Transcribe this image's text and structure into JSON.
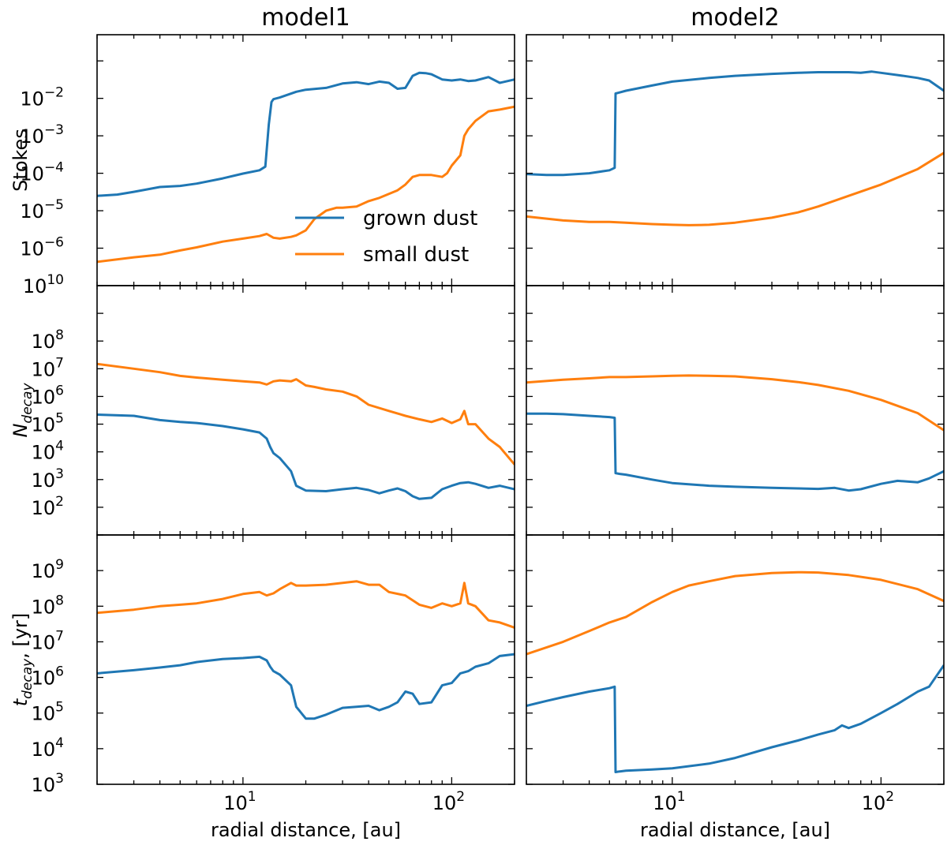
{
  "chart_data": [
    {
      "type": "line",
      "panel": "model1-stokes",
      "title": "model1",
      "ylabel": "Stokes",
      "xscale": "log",
      "yscale": "log",
      "xlim": [
        2,
        200
      ],
      "ylim": [
        1e-07,
        0.5
      ],
      "xticks": [
        {
          "v": 10,
          "base": "10",
          "exp": "1"
        },
        {
          "v": 100,
          "base": "10",
          "exp": "2"
        }
      ],
      "yticks": [
        {
          "v": 1e-06,
          "base": "10",
          "exp": "−6"
        },
        {
          "v": 1e-05,
          "base": "10",
          "exp": "−5"
        },
        {
          "v": 0.0001,
          "base": "10",
          "exp": "−4"
        },
        {
          "v": 0.001,
          "base": "10",
          "exp": "−3"
        },
        {
          "v": 0.01,
          "base": "10",
          "exp": "−2"
        }
      ],
      "legend": {
        "position": "center-right",
        "entries": [
          {
            "name": "grown dust",
            "color": "#1f77b4"
          },
          {
            "name": "small dust",
            "color": "#ff7f0e"
          }
        ]
      },
      "series": [
        {
          "name": "grown dust",
          "color": "#1f77b4",
          "x": [
            2,
            2.5,
            3,
            4,
            5,
            6,
            8,
            10,
            12,
            12.8,
            13.3,
            13.7,
            14,
            15,
            18,
            20,
            25,
            30,
            35,
            40,
            45,
            50,
            55,
            60,
            65,
            70,
            75,
            80,
            90,
            100,
            110,
            120,
            130,
            150,
            170,
            200
          ],
          "y": [
            2.5e-05,
            2.7e-05,
            3.2e-05,
            4.3e-05,
            4.6e-05,
            5.3e-05,
            7.3e-05,
            9.8e-05,
            0.00012,
            0.00015,
            0.002,
            0.008,
            0.0095,
            0.0105,
            0.015,
            0.017,
            0.019,
            0.025,
            0.027,
            0.024,
            0.028,
            0.026,
            0.018,
            0.019,
            0.04,
            0.048,
            0.047,
            0.044,
            0.032,
            0.03,
            0.032,
            0.029,
            0.03,
            0.037,
            0.026,
            0.032
          ]
        },
        {
          "name": "small dust",
          "color": "#ff7f0e",
          "x": [
            2,
            3,
            4,
            5,
            6,
            8,
            10,
            12,
            13,
            14,
            15,
            17,
            18,
            20,
            22,
            25,
            28,
            30,
            35,
            40,
            45,
            50,
            55,
            60,
            65,
            70,
            80,
            90,
            95,
            100,
            110,
            115,
            120,
            130,
            150,
            170,
            200
          ],
          "y": [
            4.3e-07,
            5.7e-07,
            6.7e-07,
            8.7e-07,
            1.05e-06,
            1.5e-06,
            1.8e-06,
            2.1e-06,
            2.4e-06,
            1.9e-06,
            1.8e-06,
            2e-06,
            2.2e-06,
            3e-06,
            6e-06,
            1e-05,
            1.2e-05,
            1.2e-05,
            1.3e-05,
            1.8e-05,
            2.2e-05,
            2.8e-05,
            3.5e-05,
            5e-05,
            8e-05,
            9e-05,
            9e-05,
            8e-05,
            0.0001,
            0.00016,
            0.0003,
            0.001,
            0.0015,
            0.0025,
            0.0045,
            0.005,
            0.006
          ]
        }
      ]
    },
    {
      "type": "line",
      "panel": "model2-stokes",
      "title": "model2",
      "xscale": "log",
      "yscale": "log",
      "xlim": [
        2,
        200
      ],
      "ylim": [
        1e-07,
        0.5
      ],
      "series": [
        {
          "name": "grown dust",
          "color": "#1f77b4",
          "x": [
            2,
            2.5,
            3,
            4,
            5,
            5.3,
            5.35,
            5.5,
            6,
            8,
            10,
            15,
            20,
            30,
            40,
            50,
            60,
            70,
            80,
            90,
            100,
            120,
            150,
            170,
            200
          ],
          "y": [
            9.5e-05,
            9e-05,
            9e-05,
            0.0001,
            0.00012,
            0.00014,
            0.0135,
            0.014,
            0.016,
            0.022,
            0.028,
            0.035,
            0.04,
            0.045,
            0.048,
            0.05,
            0.05,
            0.05,
            0.048,
            0.052,
            0.048,
            0.042,
            0.035,
            0.03,
            0.016
          ]
        },
        {
          "name": "small dust",
          "color": "#ff7f0e",
          "x": [
            2,
            3,
            4,
            5,
            6,
            8,
            10,
            12,
            15,
            20,
            30,
            40,
            50,
            70,
            100,
            150,
            200
          ],
          "y": [
            7e-06,
            5.5e-06,
            5e-06,
            5e-06,
            4.8e-06,
            4.4e-06,
            4.2e-06,
            4.1e-06,
            4.2e-06,
            4.8e-06,
            6.5e-06,
            9e-06,
            1.3e-05,
            2.5e-05,
            5e-05,
            0.00013,
            0.00035
          ]
        }
      ]
    },
    {
      "type": "line",
      "panel": "model1-ndecay",
      "ylabel": "N_decay",
      "xscale": "log",
      "yscale": "log",
      "xlim": [
        2,
        200
      ],
      "ylim": [
        10,
        10000000000.0
      ],
      "yticks": [
        {
          "v": 100,
          "base": "10",
          "exp": "2"
        },
        {
          "v": 1000,
          "base": "10",
          "exp": "3"
        },
        {
          "v": 10000.0,
          "base": "10",
          "exp": "4"
        },
        {
          "v": 100000.0,
          "base": "10",
          "exp": "5"
        },
        {
          "v": 1000000.0,
          "base": "10",
          "exp": "6"
        },
        {
          "v": 10000000.0,
          "base": "10",
          "exp": "7"
        },
        {
          "v": 100000000.0,
          "base": "10",
          "exp": "8"
        },
        {
          "v": 10000000000.0,
          "base": "10",
          "exp": "10"
        }
      ],
      "series": [
        {
          "name": "small dust",
          "color": "#ff7f0e",
          "x": [
            2,
            3,
            4,
            5,
            6,
            8,
            10,
            12,
            13,
            14,
            15,
            17,
            18,
            20,
            22,
            25,
            30,
            35,
            40,
            50,
            60,
            70,
            80,
            90,
            100,
            110,
            115,
            120,
            130,
            150,
            170,
            200
          ],
          "y": [
            15000000.0,
            10000000.0,
            7500000.0,
            5500000.0,
            4800000.0,
            4000000.0,
            3500000.0,
            3200000.0,
            2700000.0,
            3500000.0,
            3800000.0,
            3500000.0,
            4200000.0,
            2500000.0,
            2200000.0,
            1800000.0,
            1500000.0,
            1000000.0,
            500000.0,
            300000.0,
            200000.0,
            150000.0,
            120000.0,
            160000.0,
            110000.0,
            150000.0,
            300000.0,
            100000.0,
            100000.0,
            30000.0,
            15000.0,
            3500.0
          ]
        },
        {
          "name": "grown dust",
          "color": "#1f77b4",
          "x": [
            2,
            3,
            4,
            5,
            6,
            8,
            10,
            12,
            13,
            13.5,
            14,
            15,
            17,
            18,
            20,
            25,
            30,
            35,
            40,
            45,
            50,
            55,
            60,
            65,
            70,
            80,
            90,
            100,
            110,
            120,
            130,
            150,
            170,
            200
          ],
          "y": [
            220000.0,
            200000.0,
            140000.0,
            120000.0,
            110000.0,
            85000.0,
            65000.0,
            50000.0,
            30000.0,
            15000.0,
            9000.0,
            6000.0,
            2000.0,
            600,
            400,
            380,
            450,
            500,
            420,
            320,
            400,
            480,
            380,
            250,
            200,
            220,
            450,
            600,
            750,
            800,
            700,
            500,
            600,
            450
          ]
        }
      ]
    },
    {
      "type": "line",
      "panel": "model2-ndecay",
      "xscale": "log",
      "yscale": "log",
      "xlim": [
        2,
        200
      ],
      "ylim": [
        10,
        10000000000.0
      ],
      "series": [
        {
          "name": "small dust",
          "color": "#ff7f0e",
          "x": [
            2,
            3,
            4,
            5,
            6,
            8,
            10,
            12,
            15,
            20,
            30,
            40,
            50,
            70,
            100,
            150,
            200
          ],
          "y": [
            3200000.0,
            4000000.0,
            4500000.0,
            5000000.0,
            5000000.0,
            5300000.0,
            5600000.0,
            5700000.0,
            5600000.0,
            5300000.0,
            4200000.0,
            3300000.0,
            2600000.0,
            1600000.0,
            750000.0,
            250000.0,
            60000.0
          ]
        },
        {
          "name": "grown dust",
          "color": "#1f77b4",
          "x": [
            2,
            2.5,
            3,
            4,
            5,
            5.3,
            5.35,
            5.6,
            6,
            8,
            10,
            15,
            20,
            30,
            40,
            50,
            60,
            70,
            80,
            100,
            120,
            150,
            170,
            200
          ],
          "y": [
            240000.0,
            240000.0,
            230000.0,
            200000.0,
            180000.0,
            170000.0,
            1700.0,
            1600.0,
            1500.0,
            1000.0,
            750,
            600,
            550,
            500,
            480,
            460,
            500,
            400,
            450,
            700,
            900,
            800,
            1100,
            2000
          ]
        }
      ]
    },
    {
      "type": "line",
      "panel": "model1-tdecay",
      "ylabel": "t_decay, [yr]",
      "xlabel": "radial distance, [au]",
      "xscale": "log",
      "yscale": "log",
      "xlim": [
        2,
        200
      ],
      "ylim": [
        1000,
        10000000000.0
      ],
      "yticks": [
        {
          "v": 1000,
          "base": "10",
          "exp": "3"
        },
        {
          "v": 10000.0,
          "base": "10",
          "exp": "4"
        },
        {
          "v": 100000.0,
          "base": "10",
          "exp": "5"
        },
        {
          "v": 1000000.0,
          "base": "10",
          "exp": "6"
        },
        {
          "v": 10000000.0,
          "base": "10",
          "exp": "7"
        },
        {
          "v": 100000000.0,
          "base": "10",
          "exp": "8"
        },
        {
          "v": 1000000000.0,
          "base": "10",
          "exp": "9"
        }
      ],
      "series": [
        {
          "name": "small dust",
          "color": "#ff7f0e",
          "x": [
            2,
            3,
            4,
            5,
            6,
            8,
            10,
            12,
            13,
            14,
            15,
            17,
            18,
            20,
            25,
            30,
            35,
            40,
            45,
            50,
            60,
            70,
            80,
            90,
            100,
            110,
            115,
            120,
            130,
            150,
            170,
            200
          ],
          "y": [
            65000000.0,
            80000000.0,
            100000000.0,
            110000000.0,
            120000000.0,
            160000000.0,
            220000000.0,
            250000000.0,
            200000000.0,
            230000000.0,
            300000000.0,
            450000000.0,
            380000000.0,
            380000000.0,
            400000000.0,
            450000000.0,
            500000000.0,
            400000000.0,
            400000000.0,
            250000000.0,
            200000000.0,
            110000000.0,
            90000000.0,
            120000000.0,
            100000000.0,
            120000000.0,
            450000000.0,
            120000000.0,
            100000000.0,
            40000000.0,
            35000000.0,
            25000000.0
          ]
        },
        {
          "name": "grown dust",
          "color": "#1f77b4",
          "x": [
            2,
            3,
            4,
            5,
            6,
            8,
            10,
            12,
            13,
            13.5,
            14,
            15,
            17,
            18,
            20,
            22,
            25,
            30,
            35,
            40,
            45,
            50,
            55,
            60,
            65,
            70,
            80,
            90,
            100,
            110,
            120,
            130,
            150,
            170,
            200
          ],
          "y": [
            1300000.0,
            1600000.0,
            1900000.0,
            2200000.0,
            2700000.0,
            3300000.0,
            3500000.0,
            3800000.0,
            3000000.0,
            2000000.0,
            1500000.0,
            1200000.0,
            600000.0,
            150000.0,
            70000.0,
            70000.0,
            90000.0,
            140000.0,
            150000.0,
            160000.0,
            120000.0,
            150000.0,
            200000.0,
            400000.0,
            350000.0,
            180000.0,
            200000.0,
            600000.0,
            700000.0,
            1300000.0,
            1500000.0,
            2000000.0,
            2500000.0,
            4000000.0,
            4500000.0
          ]
        }
      ]
    },
    {
      "type": "line",
      "panel": "model2-tdecay",
      "xlabel": "radial distance, [au]",
      "xscale": "log",
      "yscale": "log",
      "xlim": [
        2,
        200
      ],
      "ylim": [
        1000,
        10000000000.0
      ],
      "series": [
        {
          "name": "small dust",
          "color": "#ff7f0e",
          "x": [
            2,
            3,
            4,
            5,
            6,
            8,
            10,
            12,
            15,
            20,
            30,
            40,
            50,
            70,
            100,
            150,
            200
          ],
          "y": [
            4500000.0,
            10000000.0,
            20000000.0,
            35000000.0,
            50000000.0,
            130000000.0,
            250000000.0,
            380000000.0,
            500000000.0,
            700000000.0,
            850000000.0,
            900000000.0,
            880000000.0,
            750000000.0,
            550000000.0,
            300000000.0,
            140000000.0
          ]
        },
        {
          "name": "grown dust",
          "color": "#1f77b4",
          "x": [
            2,
            2.5,
            3,
            4,
            5,
            5.3,
            5.35,
            5.6,
            6,
            8,
            10,
            15,
            20,
            30,
            40,
            50,
            60,
            65,
            70,
            80,
            100,
            120,
            150,
            170,
            200
          ],
          "y": [
            160000.0,
            220000.0,
            280000.0,
            400000.0,
            500000.0,
            550000.0,
            2200.0,
            2300.0,
            2400.0,
            2600.0,
            2800.0,
            3800.0,
            5500.0,
            11000.0,
            17000.0,
            25000.0,
            33000.0,
            45000.0,
            38000.0,
            50000.0,
            100000.0,
            180000.0,
            400000.0,
            550000.0,
            2200000.0
          ]
        }
      ]
    }
  ]
}
